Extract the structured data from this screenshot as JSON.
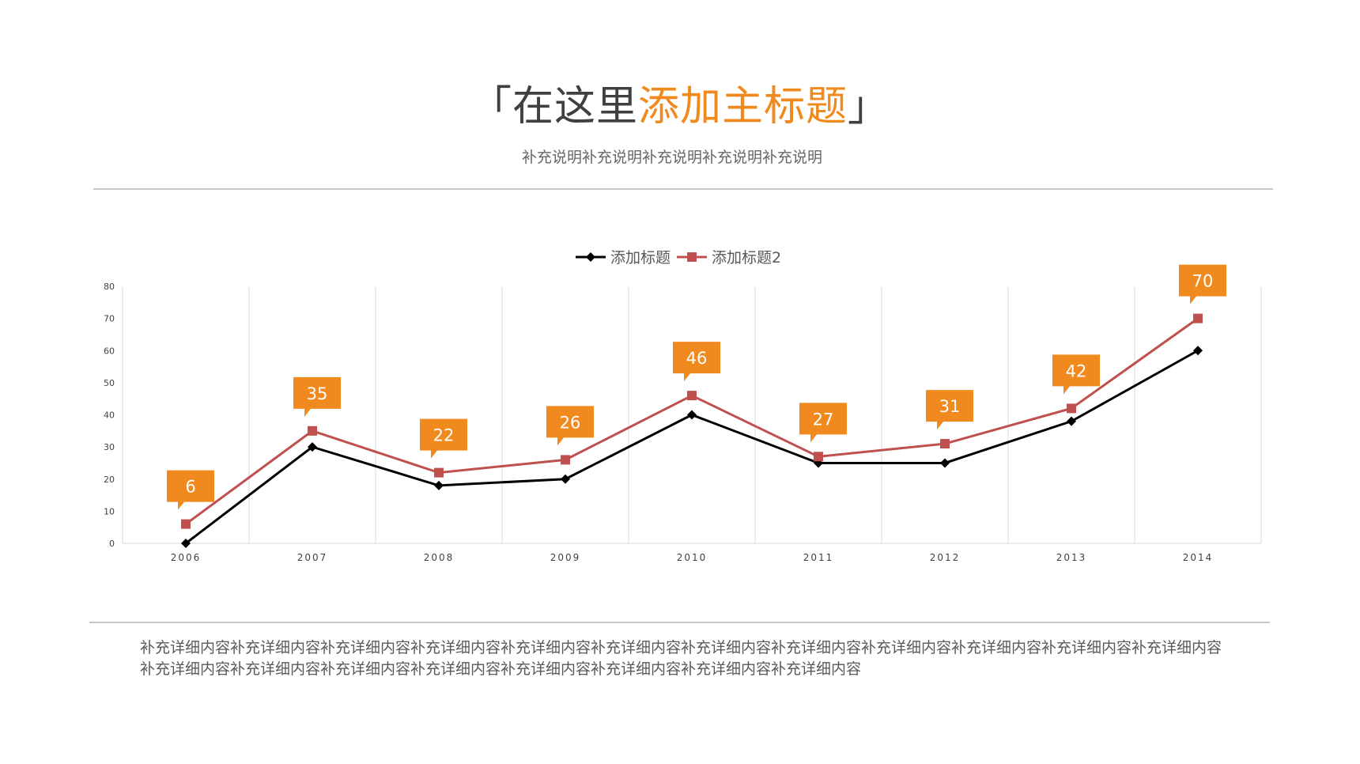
{
  "header": {
    "bracket_open": "「",
    "title_plain": "在这里",
    "title_highlight": "添加主标题",
    "bracket_close": "」",
    "subtitle": "补充说明补充说明补充说明补充说明补充说明"
  },
  "footer": {
    "body": "补充详细内容补充详细内容补充详细内容补充详细内容补充详细内容补充详细内容补充详细内容补充详细内容补充详细内容补充详细内容补充详细内容补充详细内容补充详细内容补充详细内容补充详细内容补充详细内容补充详细内容补充详细内容补充详细内容补充详细内容"
  },
  "colors": {
    "accent": "#f08a1e",
    "series1": "#000000",
    "series2": "#c0504d",
    "label_bg": "#f08a1e",
    "grid": "#d9d9d9"
  },
  "chart_data": {
    "type": "line",
    "categories": [
      "2006",
      "2007",
      "2008",
      "2009",
      "2010",
      "2011",
      "2012",
      "2013",
      "2014"
    ],
    "series": [
      {
        "name": "添加标题",
        "values": [
          0,
          30,
          18,
          20,
          40,
          25,
          25,
          38,
          60
        ],
        "marker": "diamond"
      },
      {
        "name": "添加标题2",
        "values": [
          6,
          35,
          22,
          26,
          46,
          27,
          31,
          42,
          70
        ],
        "marker": "square",
        "data_labels": true
      }
    ],
    "ylim": [
      0,
      80
    ],
    "yticks": [
      "0",
      "10",
      "20",
      "30",
      "40",
      "50",
      "60",
      "70",
      "80"
    ],
    "grid": "vertical",
    "legend": "top"
  }
}
